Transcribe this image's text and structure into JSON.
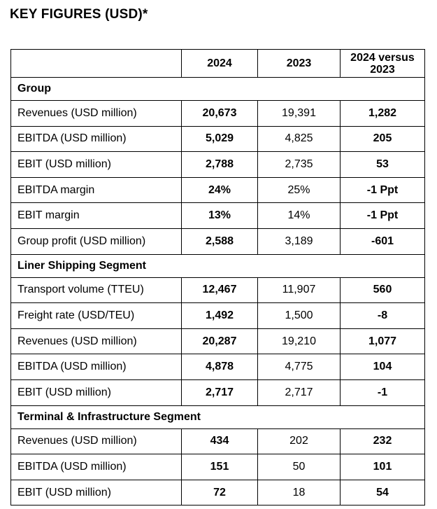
{
  "title": "KEY FIGURES (USD)*",
  "header": {
    "col1": "",
    "col2": "2024",
    "col3": "2023",
    "col4_line1": "2024 versus",
    "col4_line2": "2023"
  },
  "sections": [
    {
      "name": "Group",
      "rows": [
        {
          "label": "Revenues (USD million)",
          "y2024": "20,673",
          "y2023": "19,391",
          "diff": "1,282"
        },
        {
          "label": "EBITDA (USD million)",
          "y2024": "5,029",
          "y2023": "4,825",
          "diff": "205"
        },
        {
          "label": "EBIT (USD million)",
          "y2024": "2,788",
          "y2023": "2,735",
          "diff": "53"
        },
        {
          "label": "EBITDA margin",
          "y2024": "24%",
          "y2023": "25%",
          "diff": "-1 Ppt"
        },
        {
          "label": "EBIT margin",
          "y2024": "13%",
          "y2023": "14%",
          "diff": "-1 Ppt"
        },
        {
          "label": "Group profit (USD million)",
          "y2024": "2,588",
          "y2023": "3,189",
          "diff": "-601"
        }
      ]
    },
    {
      "name": "Liner Shipping Segment",
      "rows": [
        {
          "label": "Transport volume (TTEU)",
          "y2024": "12,467",
          "y2023": "11,907",
          "diff": "560"
        },
        {
          "label": "Freight rate (USD/TEU)",
          "y2024": "1,492",
          "y2023": "1,500",
          "diff": "-8"
        },
        {
          "label": "Revenues (USD million)",
          "y2024": "20,287",
          "y2023": "19,210",
          "diff": "1,077"
        },
        {
          "label": "EBITDA (USD million)",
          "y2024": "4,878",
          "y2023": "4,775",
          "diff": "104"
        },
        {
          "label": "EBIT (USD million)",
          "y2024": "2,717",
          "y2023": "2,717",
          "diff": "-1"
        }
      ]
    },
    {
      "name": "Terminal & Infrastructure Segment",
      "rows": [
        {
          "label": "Revenues (USD million)",
          "y2024": "434",
          "y2023": "202",
          "diff": "232"
        },
        {
          "label": "EBITDA (USD million)",
          "y2024": "151",
          "y2023": "50",
          "diff": "101"
        },
        {
          "label": "EBIT (USD million)",
          "y2024": "72",
          "y2023": "18",
          "diff": "54"
        }
      ]
    }
  ]
}
